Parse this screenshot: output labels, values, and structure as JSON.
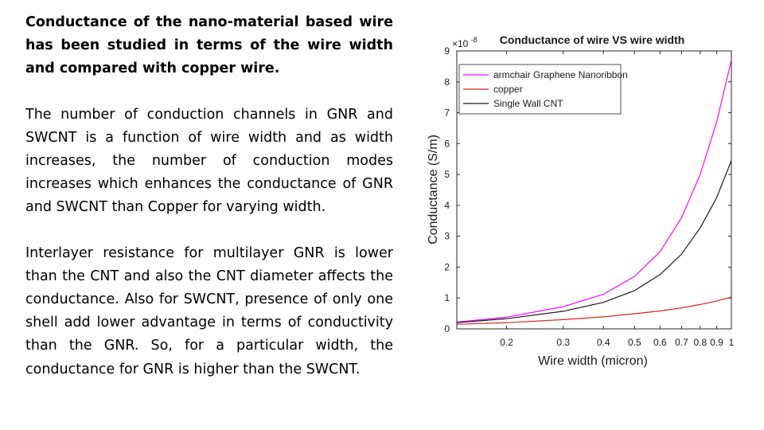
{
  "paragraphs": {
    "p1": "Conductance of the nano-material based wire has been studied in terms of the wire width and compared with copper wire.",
    "p2": "The number of conduction channels in GNR and SWCNT is a function of wire width and as width increases, the number of conduction modes increases which enhances the conductance of GNR and SWCNT than Copper for varying width.",
    "p3": "Interlayer resistance for multilayer GNR is lower than the CNT and also the CNT diameter affects the conductance. Also for SWCNT, presence of only one shell add lower advantage in terms of conductivity than the GNR. So, for a particular width, the conductance for GNR is higher than the SWCNT."
  },
  "chart_data": {
    "type": "line",
    "title": "Conductance of wire VS wire width",
    "xlabel": "Wire width (micron)",
    "ylabel": "Conductance (S/m)",
    "y_multiplier": "×10",
    "y_exponent": "-8",
    "xscale": "log",
    "xlim": [
      0.14,
      1.0
    ],
    "ylim": [
      0,
      9
    ],
    "xticks": [
      0.2,
      0.3,
      0.4,
      0.5,
      0.6,
      0.7,
      0.8,
      0.9,
      1
    ],
    "xtick_labels": [
      "0.2",
      "0.3",
      "0.4",
      "0.5",
      "0.6",
      "0.7",
      "0.8",
      "0.9",
      "1"
    ],
    "yticks": [
      0,
      1,
      2,
      3,
      4,
      5,
      6,
      7,
      8,
      9
    ],
    "ytick_labels": [
      "0",
      "1",
      "2",
      "3",
      "4",
      "5",
      "6",
      "7",
      "8",
      "9"
    ],
    "legend_location": "top-left",
    "series": [
      {
        "name": "armchair Graphene Nanoribbon",
        "color": "#ff00ff",
        "x": [
          0.14,
          0.2,
          0.3,
          0.4,
          0.5,
          0.6,
          0.7,
          0.8,
          0.9,
          1.0
        ],
        "values": [
          0.22,
          0.38,
          0.72,
          1.12,
          1.7,
          2.5,
          3.6,
          5.0,
          6.7,
          8.7
        ]
      },
      {
        "name": "copper",
        "color": "#d62728",
        "x": [
          0.14,
          0.2,
          0.3,
          0.4,
          0.5,
          0.6,
          0.7,
          0.8,
          0.9,
          1.0
        ],
        "values": [
          0.15,
          0.2,
          0.3,
          0.39,
          0.49,
          0.58,
          0.68,
          0.79,
          0.9,
          1.03
        ]
      },
      {
        "name": "Single Wall CNT",
        "color": "#1a1a1a",
        "x": [
          0.14,
          0.2,
          0.3,
          0.4,
          0.5,
          0.6,
          0.7,
          0.8,
          0.9,
          1.0
        ],
        "values": [
          0.2,
          0.33,
          0.57,
          0.86,
          1.24,
          1.76,
          2.42,
          3.27,
          4.25,
          5.45
        ]
      }
    ]
  }
}
